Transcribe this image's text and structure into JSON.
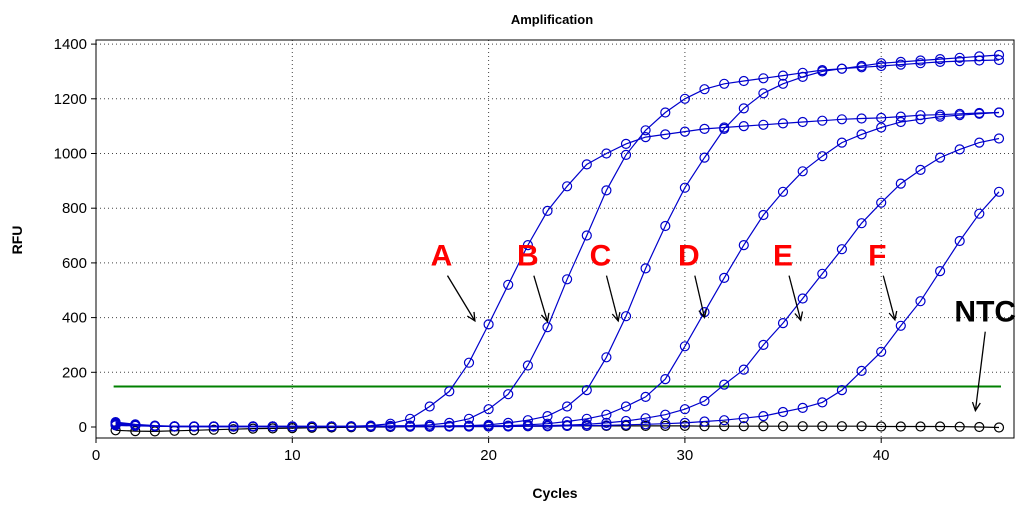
{
  "chart_data": {
    "type": "line",
    "title": "Amplification",
    "xlabel": "Cycles",
    "ylabel": "RFU",
    "xlim": [
      0,
      46.5
    ],
    "ylim": [
      -50,
      1430
    ],
    "xticks": [
      0,
      10,
      20,
      30,
      40
    ],
    "yticks": [
      0,
      200,
      400,
      600,
      800,
      1000,
      1200,
      1400
    ],
    "grid": true,
    "threshold": {
      "value": 148,
      "x_start": 1,
      "x_end": 46,
      "color": "#008000"
    },
    "x": [
      1,
      2,
      3,
      4,
      5,
      6,
      7,
      8,
      9,
      10,
      11,
      12,
      13,
      14,
      15,
      16,
      17,
      18,
      19,
      20,
      21,
      22,
      23,
      24,
      25,
      26,
      27,
      28,
      29,
      30,
      31,
      32,
      33,
      34,
      35,
      36,
      37,
      38,
      39,
      40,
      41,
      42,
      43,
      44,
      45,
      46
    ],
    "series": [
      {
        "name": "A",
        "color": "#0000cc",
        "values": [
          15,
          8,
          3,
          2,
          2,
          2,
          2,
          2,
          2,
          2,
          2,
          2,
          3,
          5,
          12,
          30,
          75,
          130,
          235,
          375,
          520,
          665,
          790,
          880,
          960,
          1000,
          1035,
          1060,
          1070,
          1080,
          1090,
          1095,
          1100,
          1105,
          1110,
          1115,
          1120,
          1125,
          1128,
          1130,
          1135,
          1140,
          1142,
          1145,
          1148,
          1150
        ]
      },
      {
        "name": "B",
        "color": "#0000cc",
        "values": [
          18,
          10,
          5,
          3,
          2,
          2,
          2,
          2,
          2,
          2,
          2,
          2,
          2,
          3,
          4,
          5,
          8,
          15,
          30,
          65,
          120,
          225,
          365,
          540,
          700,
          865,
          995,
          1085,
          1150,
          1200,
          1235,
          1255,
          1265,
          1275,
          1285,
          1295,
          1305,
          1310,
          1315,
          1320,
          1325,
          1330,
          1335,
          1338,
          1340,
          1342
        ]
      },
      {
        "name": "C",
        "color": "#0000cc",
        "values": [
          12,
          8,
          4,
          2,
          2,
          2,
          2,
          2,
          2,
          2,
          2,
          2,
          2,
          2,
          2,
          3,
          3,
          4,
          5,
          8,
          15,
          25,
          40,
          75,
          135,
          255,
          405,
          580,
          735,
          875,
          985,
          1090,
          1165,
          1220,
          1255,
          1280,
          1300,
          1310,
          1320,
          1330,
          1335,
          1340,
          1345,
          1350,
          1355,
          1360
        ]
      },
      {
        "name": "D",
        "color": "#0000cc",
        "values": [
          10,
          6,
          3,
          2,
          2,
          2,
          2,
          2,
          2,
          2,
          2,
          2,
          2,
          2,
          2,
          2,
          2,
          3,
          3,
          4,
          5,
          8,
          12,
          20,
          30,
          45,
          75,
          110,
          175,
          295,
          420,
          545,
          665,
          775,
          860,
          935,
          990,
          1040,
          1070,
          1095,
          1115,
          1125,
          1135,
          1140,
          1145,
          1150
        ]
      },
      {
        "name": "E",
        "color": "#0000cc",
        "values": [
          8,
          5,
          3,
          2,
          2,
          2,
          2,
          2,
          2,
          2,
          2,
          2,
          2,
          2,
          2,
          2,
          2,
          2,
          2,
          3,
          3,
          4,
          5,
          7,
          10,
          15,
          22,
          32,
          45,
          65,
          95,
          155,
          210,
          300,
          380,
          470,
          560,
          650,
          745,
          820,
          890,
          940,
          985,
          1015,
          1040,
          1055
        ]
      },
      {
        "name": "F",
        "color": "#0000cc",
        "values": [
          6,
          4,
          3,
          2,
          2,
          2,
          2,
          2,
          2,
          2,
          2,
          2,
          2,
          2,
          2,
          2,
          2,
          2,
          2,
          2,
          2,
          3,
          3,
          4,
          5,
          6,
          8,
          10,
          12,
          15,
          20,
          25,
          32,
          40,
          55,
          70,
          90,
          135,
          205,
          275,
          370,
          460,
          570,
          680,
          780,
          860
        ]
      },
      {
        "name": "NTC",
        "color": "#000000",
        "values": [
          -12,
          -15,
          -16,
          -14,
          -12,
          -10,
          -8,
          -6,
          -5,
          -4,
          -3,
          -2,
          -1,
          0,
          0,
          1,
          1,
          2,
          2,
          2,
          3,
          3,
          3,
          4,
          4,
          4,
          4,
          4,
          4,
          4,
          3,
          3,
          3,
          3,
          3,
          3,
          3,
          3,
          3,
          2,
          2,
          2,
          2,
          1,
          0,
          -2
        ]
      }
    ],
    "annotations": [
      {
        "text": "A",
        "color": "#ff0000",
        "x": 17.6,
        "y": 590,
        "arrow_to": [
          19.3,
          388
        ]
      },
      {
        "text": "B",
        "color": "#ff0000",
        "x": 22.0,
        "y": 590,
        "arrow_to": [
          23.0,
          385
        ]
      },
      {
        "text": "C",
        "color": "#ff0000",
        "x": 25.7,
        "y": 590,
        "arrow_to": [
          26.6,
          388
        ]
      },
      {
        "text": "D",
        "color": "#ff0000",
        "x": 30.2,
        "y": 590,
        "arrow_to": [
          31.0,
          400
        ]
      },
      {
        "text": "E",
        "color": "#ff0000",
        "x": 35.0,
        "y": 590,
        "arrow_to": [
          35.9,
          390
        ]
      },
      {
        "text": "F",
        "color": "#ff0000",
        "x": 39.8,
        "y": 590,
        "arrow_to": [
          40.7,
          392
        ]
      },
      {
        "text": "NTC",
        "color": "#000000",
        "x": 45.3,
        "y": 385,
        "arrow_to": [
          44.8,
          60
        ]
      }
    ]
  }
}
